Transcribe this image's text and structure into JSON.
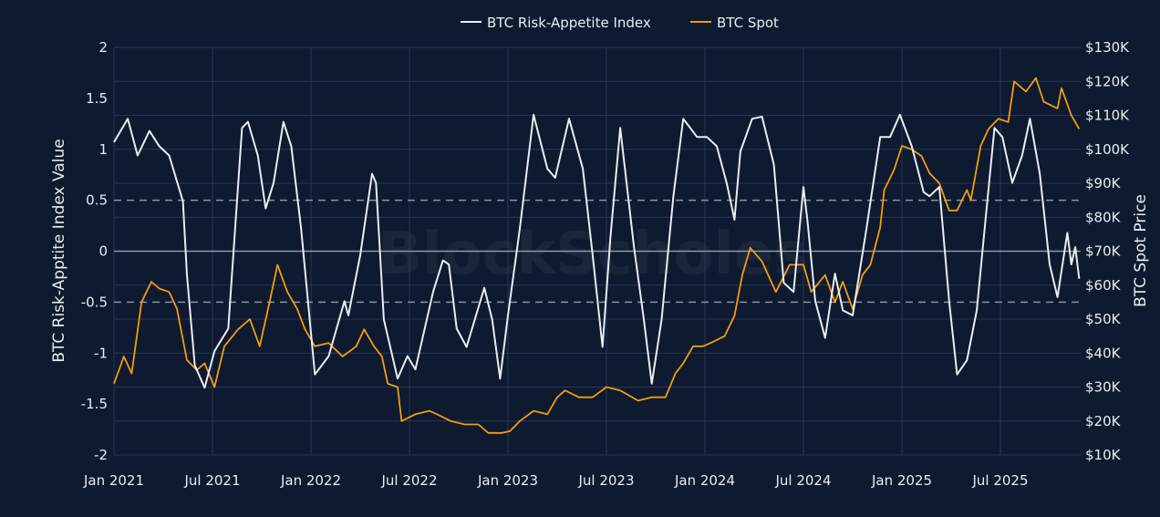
{
  "chart_data": {
    "type": "line",
    "title": "",
    "watermark": "BlockScholes",
    "legend": {
      "position": "top-center",
      "entries": [
        "BTC Risk-Appetite Index",
        "BTC Spot"
      ]
    },
    "xlabel": "",
    "ylabel_left": "BTC Risk-Apptite Index Value",
    "ylabel_right": "BTC Spot Price",
    "x_unit": "decimal year",
    "xlim": [
      2021.0,
      2025.92
    ],
    "x_ticks": [
      {
        "value": 2021.0,
        "label": "Jan 2021"
      },
      {
        "value": 2021.5,
        "label": "Jul 2021"
      },
      {
        "value": 2022.0,
        "label": "Jan 2022"
      },
      {
        "value": 2022.5,
        "label": "Jul 2022"
      },
      {
        "value": 2023.0,
        "label": "Jan 2023"
      },
      {
        "value": 2023.5,
        "label": "Jul 2023"
      },
      {
        "value": 2024.0,
        "label": "Jan 2024"
      },
      {
        "value": 2024.5,
        "label": "Jul 2024"
      },
      {
        "value": 2025.0,
        "label": "Jan 2025"
      },
      {
        "value": 2025.5,
        "label": "Jul 2025"
      }
    ],
    "ylim_left": [
      -2,
      2
    ],
    "y_ticks_left": [
      {
        "value": 2,
        "label": "2"
      },
      {
        "value": 1.5,
        "label": "1.5"
      },
      {
        "value": 1,
        "label": "1"
      },
      {
        "value": 0.5,
        "label": "0.5"
      },
      {
        "value": 0,
        "label": "0"
      },
      {
        "value": -0.5,
        "label": "-0.5"
      },
      {
        "value": -1,
        "label": "-1"
      },
      {
        "value": -1.5,
        "label": "-1.5"
      },
      {
        "value": -2,
        "label": "-2"
      }
    ],
    "ylim_right": [
      10,
      130
    ],
    "y_ticks_right": [
      {
        "value": 130,
        "label": "$130K"
      },
      {
        "value": 120,
        "label": "$120K"
      },
      {
        "value": 110,
        "label": "$110K"
      },
      {
        "value": 100,
        "label": "$100K"
      },
      {
        "value": 90,
        "label": "$90K"
      },
      {
        "value": 80,
        "label": "$80K"
      },
      {
        "value": 70,
        "label": "$70K"
      },
      {
        "value": 60,
        "label": "$60K"
      },
      {
        "value": 50,
        "label": "$50K"
      },
      {
        "value": 40,
        "label": "$40K"
      },
      {
        "value": 30,
        "label": "$30K"
      },
      {
        "value": 20,
        "label": "$20K"
      },
      {
        "value": 10,
        "label": "$10K"
      }
    ],
    "reference_lines_left": [
      {
        "value": 0.5,
        "style": "dashed"
      },
      {
        "value": 0,
        "style": "solid"
      },
      {
        "value": -0.5,
        "style": "dashed"
      }
    ],
    "grid": true,
    "series": [
      {
        "name": "BTC Risk-Appetite Index",
        "axis": "left",
        "color": "#e9edf3",
        "points": [
          [
            2021.0,
            1.07
          ],
          [
            2021.07,
            1.3
          ],
          [
            2021.12,
            0.94
          ],
          [
            2021.18,
            1.18
          ],
          [
            2021.23,
            1.03
          ],
          [
            2021.28,
            0.94
          ],
          [
            2021.35,
            0.49
          ],
          [
            2021.37,
            -0.22
          ],
          [
            2021.41,
            -1.12
          ],
          [
            2021.46,
            -1.34
          ],
          [
            2021.51,
            -0.98
          ],
          [
            2021.58,
            -0.76
          ],
          [
            2021.65,
            1.21
          ],
          [
            2021.68,
            1.27
          ],
          [
            2021.73,
            0.94
          ],
          [
            2021.77,
            0.42
          ],
          [
            2021.81,
            0.67
          ],
          [
            2021.86,
            1.27
          ],
          [
            2021.9,
            1.03
          ],
          [
            2021.95,
            0.22
          ],
          [
            2022.02,
            -1.21
          ],
          [
            2022.09,
            -1.03
          ],
          [
            2022.17,
            -0.49
          ],
          [
            2022.19,
            -0.63
          ],
          [
            2022.25,
            -0.04
          ],
          [
            2022.31,
            0.76
          ],
          [
            2022.33,
            0.67
          ],
          [
            2022.37,
            -0.67
          ],
          [
            2022.44,
            -1.25
          ],
          [
            2022.49,
            -1.03
          ],
          [
            2022.53,
            -1.16
          ],
          [
            2022.62,
            -0.4
          ],
          [
            2022.67,
            -0.09
          ],
          [
            2022.7,
            -0.13
          ],
          [
            2022.74,
            -0.76
          ],
          [
            2022.79,
            -0.94
          ],
          [
            2022.88,
            -0.36
          ],
          [
            2022.92,
            -0.67
          ],
          [
            2022.96,
            -1.25
          ],
          [
            2023.0,
            -0.63
          ],
          [
            2023.06,
            0.22
          ],
          [
            2023.13,
            1.34
          ],
          [
            2023.2,
            0.81
          ],
          [
            2023.24,
            0.72
          ],
          [
            2023.31,
            1.3
          ],
          [
            2023.38,
            0.81
          ],
          [
            2023.43,
            -0.04
          ],
          [
            2023.48,
            -0.94
          ],
          [
            2023.52,
            0.13
          ],
          [
            2023.57,
            1.21
          ],
          [
            2023.64,
            0.04
          ],
          [
            2023.69,
            -0.67
          ],
          [
            2023.73,
            -1.3
          ],
          [
            2023.78,
            -0.67
          ],
          [
            2023.84,
            0.54
          ],
          [
            2023.89,
            1.3
          ],
          [
            2023.96,
            1.12
          ],
          [
            2024.01,
            1.12
          ],
          [
            2024.06,
            1.03
          ],
          [
            2024.11,
            0.67
          ],
          [
            2024.15,
            0.31
          ],
          [
            2024.18,
            0.98
          ],
          [
            2024.24,
            1.3
          ],
          [
            2024.29,
            1.32
          ],
          [
            2024.35,
            0.85
          ],
          [
            2024.4,
            -0.31
          ],
          [
            2024.45,
            -0.4
          ],
          [
            2024.5,
            0.63
          ],
          [
            2024.52,
            0.31
          ],
          [
            2024.56,
            -0.49
          ],
          [
            2024.61,
            -0.85
          ],
          [
            2024.66,
            -0.22
          ],
          [
            2024.7,
            -0.58
          ],
          [
            2024.75,
            -0.63
          ],
          [
            2024.82,
            0.22
          ],
          [
            2024.89,
            1.12
          ],
          [
            2024.94,
            1.12
          ],
          [
            2024.99,
            1.34
          ],
          [
            2025.05,
            1.03
          ],
          [
            2025.11,
            0.58
          ],
          [
            2025.14,
            0.54
          ],
          [
            2025.19,
            0.63
          ],
          [
            2025.24,
            -0.49
          ],
          [
            2025.28,
            -1.21
          ],
          [
            2025.33,
            -1.07
          ],
          [
            2025.38,
            -0.58
          ],
          [
            2025.42,
            0.22
          ],
          [
            2025.47,
            1.21
          ],
          [
            2025.51,
            1.12
          ],
          [
            2025.56,
            0.67
          ],
          [
            2025.61,
            0.94
          ],
          [
            2025.65,
            1.3
          ],
          [
            2025.7,
            0.76
          ],
          [
            2025.75,
            -0.13
          ],
          [
            2025.79,
            -0.45
          ],
          [
            2025.84,
            0.18
          ],
          [
            2025.86,
            -0.13
          ],
          [
            2025.88,
            0.04
          ],
          [
            2025.9,
            -0.27
          ]
        ]
      },
      {
        "name": "BTC Spot",
        "axis": "right",
        "unit": "thousand USD",
        "color": "#f39c12",
        "points": [
          [
            2021.0,
            31
          ],
          [
            2021.05,
            39
          ],
          [
            2021.09,
            34
          ],
          [
            2021.14,
            55
          ],
          [
            2021.19,
            61
          ],
          [
            2021.23,
            59
          ],
          [
            2021.28,
            58
          ],
          [
            2021.32,
            53
          ],
          [
            2021.37,
            38
          ],
          [
            2021.42,
            35
          ],
          [
            2021.46,
            37
          ],
          [
            2021.51,
            30
          ],
          [
            2021.56,
            42
          ],
          [
            2021.63,
            47
          ],
          [
            2021.69,
            50
          ],
          [
            2021.74,
            42
          ],
          [
            2021.79,
            55
          ],
          [
            2021.83,
            66
          ],
          [
            2021.88,
            58
          ],
          [
            2021.93,
            53
          ],
          [
            2021.97,
            47
          ],
          [
            2022.02,
            42
          ],
          [
            2022.09,
            43
          ],
          [
            2022.16,
            39
          ],
          [
            2022.23,
            42
          ],
          [
            2022.27,
            47
          ],
          [
            2022.32,
            42
          ],
          [
            2022.36,
            39
          ],
          [
            2022.39,
            31
          ],
          [
            2022.44,
            30
          ],
          [
            2022.46,
            20
          ],
          [
            2022.53,
            22
          ],
          [
            2022.6,
            23
          ],
          [
            2022.64,
            22
          ],
          [
            2022.71,
            20
          ],
          [
            2022.78,
            19
          ],
          [
            2022.85,
            19
          ],
          [
            2022.9,
            16.5
          ],
          [
            2022.97,
            16.5
          ],
          [
            2023.01,
            17
          ],
          [
            2023.06,
            20
          ],
          [
            2023.13,
            23
          ],
          [
            2023.2,
            22
          ],
          [
            2023.25,
            27
          ],
          [
            2023.29,
            29
          ],
          [
            2023.36,
            27
          ],
          [
            2023.43,
            27
          ],
          [
            2023.5,
            30
          ],
          [
            2023.57,
            29
          ],
          [
            2023.66,
            26
          ],
          [
            2023.73,
            27
          ],
          [
            2023.8,
            27
          ],
          [
            2023.85,
            34
          ],
          [
            2023.89,
            37
          ],
          [
            2023.94,
            42
          ],
          [
            2023.99,
            42
          ],
          [
            2024.03,
            43
          ],
          [
            2024.1,
            45
          ],
          [
            2024.15,
            51
          ],
          [
            2024.19,
            63
          ],
          [
            2024.23,
            71
          ],
          [
            2024.29,
            67
          ],
          [
            2024.36,
            58
          ],
          [
            2024.43,
            66
          ],
          [
            2024.5,
            66
          ],
          [
            2024.54,
            58
          ],
          [
            2024.61,
            63
          ],
          [
            2024.66,
            55
          ],
          [
            2024.7,
            61
          ],
          [
            2024.75,
            53
          ],
          [
            2024.8,
            63
          ],
          [
            2024.84,
            66
          ],
          [
            2024.89,
            77
          ],
          [
            2024.91,
            88
          ],
          [
            2024.96,
            94
          ],
          [
            2025.0,
            101
          ],
          [
            2025.05,
            100
          ],
          [
            2025.1,
            98
          ],
          [
            2025.14,
            93
          ],
          [
            2025.19,
            90
          ],
          [
            2025.24,
            82
          ],
          [
            2025.28,
            82
          ],
          [
            2025.33,
            88
          ],
          [
            2025.35,
            85
          ],
          [
            2025.4,
            101
          ],
          [
            2025.44,
            106
          ],
          [
            2025.49,
            109
          ],
          [
            2025.54,
            108
          ],
          [
            2025.57,
            120
          ],
          [
            2025.63,
            117
          ],
          [
            2025.68,
            121
          ],
          [
            2025.72,
            114
          ],
          [
            2025.79,
            112
          ],
          [
            2025.81,
            118
          ],
          [
            2025.86,
            110
          ],
          [
            2025.9,
            106
          ]
        ]
      }
    ]
  }
}
